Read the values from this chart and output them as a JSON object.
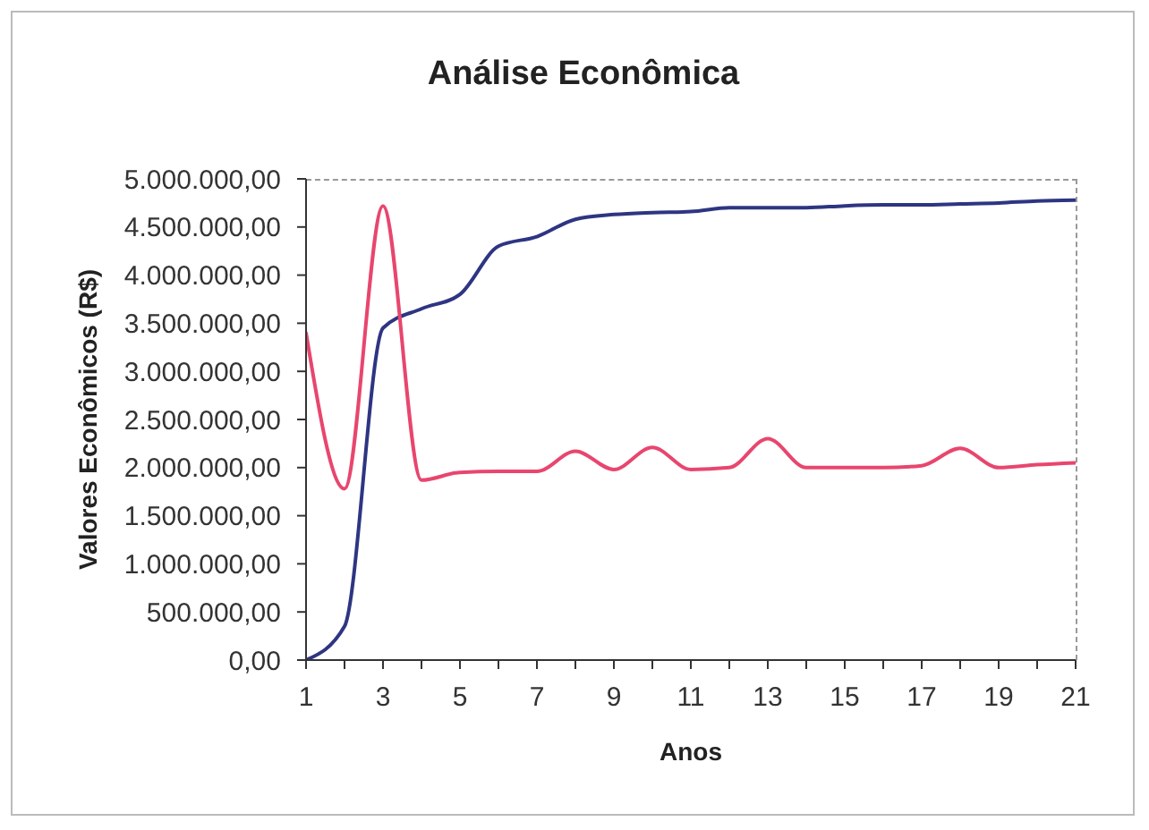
{
  "chart_data": {
    "type": "line",
    "title": "Análise Econômica",
    "xlabel": "Anos",
    "ylabel": "Valores Econômicos (R$)",
    "x": [
      1,
      2,
      3,
      4,
      5,
      6,
      7,
      8,
      9,
      10,
      11,
      12,
      13,
      14,
      15,
      16,
      17,
      18,
      19,
      20,
      21
    ],
    "series": [
      {
        "color": "#2e3582",
        "values": [
          0,
          350000,
          3450000,
          3650000,
          3800000,
          4300000,
          4400000,
          4580000,
          4630000,
          4650000,
          4660000,
          4700000,
          4700000,
          4700000,
          4720000,
          4730000,
          4730000,
          4740000,
          4750000,
          4770000,
          4780000
        ]
      },
      {
        "color": "#e8466e",
        "values": [
          3400000,
          1780000,
          4720000,
          1870000,
          1950000,
          1960000,
          1960000,
          2170000,
          1980000,
          2210000,
          1980000,
          2000000,
          2300000,
          2000000,
          2000000,
          2000000,
          2020000,
          2200000,
          2000000,
          2030000,
          2050000
        ]
      }
    ],
    "xlim": [
      1,
      21
    ],
    "xticks": [
      1,
      {
        "value": 2,
        "label": null
      },
      3,
      {
        "value": 4,
        "label": null
      },
      5,
      {
        "value": 6,
        "label": null
      },
      7,
      {
        "value": 8,
        "label": null
      },
      9,
      {
        "value": 10,
        "label": null
      },
      11,
      {
        "value": 12,
        "label": null
      },
      13,
      {
        "value": 14,
        "label": null
      },
      15,
      {
        "value": 16,
        "label": null
      },
      17,
      {
        "value": 18,
        "label": null
      },
      19,
      {
        "value": 20,
        "label": null
      },
      21
    ],
    "ylim": [
      0,
      5000000
    ],
    "yticks": [
      {
        "value": 0,
        "label": "0,00"
      },
      {
        "value": 500000,
        "label": "500.000,00"
      },
      {
        "value": 1000000,
        "label": "1.000.000,00"
      },
      {
        "value": 1500000,
        "label": "1.500.000,00"
      },
      {
        "value": 2000000,
        "label": "2.000.000,00"
      },
      {
        "value": 2500000,
        "label": "2.500.000,00"
      },
      {
        "value": 3000000,
        "label": "3.000.000,00"
      },
      {
        "value": 3500000,
        "label": "3.500.000,00"
      },
      {
        "value": 4000000,
        "label": "4.000.000,00"
      },
      {
        "value": 4500000,
        "label": "4.500.000,00"
      },
      {
        "value": 5000000,
        "label": "5.000.000,00"
      }
    ]
  }
}
